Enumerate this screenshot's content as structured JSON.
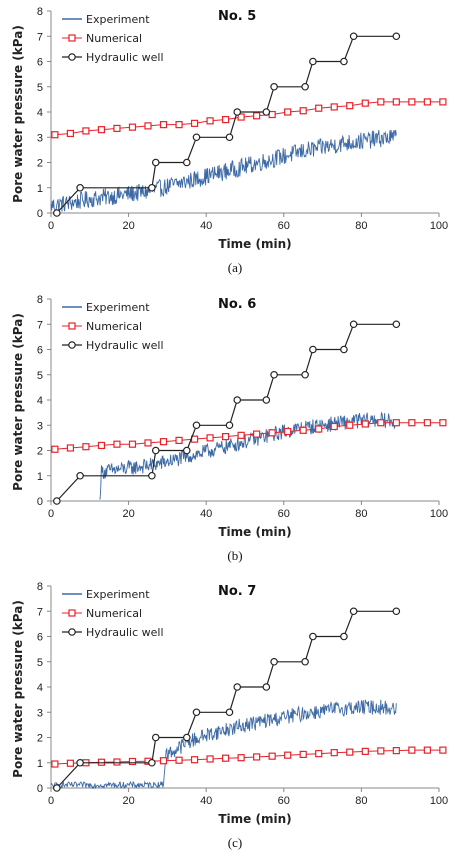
{
  "colors": {
    "experiment": "#3d6aa6",
    "numerical": "#e8222a",
    "hydraulic": "#222222",
    "axis": "#888888"
  },
  "legend": {
    "experiment": "Experiment",
    "numerical": "Numerical",
    "hydraulic": "Hydraulic well"
  },
  "chart_data": [
    {
      "type": "line",
      "panel": "(a)",
      "annotation": "No. 5",
      "xlabel": "Time (min)",
      "ylabel": "Pore water pressure (kPa)",
      "xlim": [
        0,
        100
      ],
      "ylim": [
        0,
        8
      ],
      "xticks": [
        0,
        20,
        40,
        60,
        80,
        100
      ],
      "yticks": [
        0,
        1,
        2,
        3,
        4,
        5,
        6,
        7,
        8
      ],
      "xtick_labels": [
        "0",
        "20",
        "40",
        "60",
        "80",
        "100"
      ],
      "ytick_labels": [
        "0",
        "1",
        "2",
        "3",
        "4",
        "5",
        "6",
        "7",
        "8"
      ],
      "grid": false,
      "legend_position": "top-left",
      "series": [
        {
          "name": "Experiment",
          "style": "noisy-line",
          "x": [
            0,
            5,
            10,
            15,
            20,
            25,
            30,
            35,
            40,
            45,
            50,
            55,
            60,
            65,
            70,
            75,
            80,
            85,
            89
          ],
          "y": [
            0.3,
            0.4,
            0.55,
            0.65,
            0.75,
            0.85,
            1.05,
            1.25,
            1.45,
            1.65,
            1.85,
            2.05,
            2.25,
            2.45,
            2.6,
            2.75,
            2.85,
            2.95,
            3.0
          ],
          "noise": 0.35
        },
        {
          "name": "Numerical",
          "style": "square-markers",
          "x": [
            1,
            5,
            9,
            13,
            17,
            21,
            25,
            29,
            33,
            37,
            41,
            45,
            49,
            53,
            57,
            61,
            65,
            69,
            73,
            77,
            81,
            85,
            89,
            93,
            97,
            101
          ],
          "y": [
            3.1,
            3.15,
            3.25,
            3.3,
            3.35,
            3.4,
            3.45,
            3.5,
            3.5,
            3.55,
            3.65,
            3.7,
            3.8,
            3.85,
            3.9,
            4.0,
            4.05,
            4.15,
            4.2,
            4.25,
            4.35,
            4.4,
            4.4,
            4.4,
            4.4,
            4.4
          ]
        },
        {
          "name": "Hydraulic well",
          "style": "step-circles",
          "x": [
            1.5,
            7.5,
            26,
            27,
            35,
            37.5,
            46,
            48,
            55.5,
            57.5,
            65.5,
            67.5,
            75.5,
            78,
            89
          ],
          "y": [
            0,
            1,
            1,
            2,
            2,
            3,
            3,
            4,
            4,
            5,
            5,
            6,
            6,
            7,
            7
          ]
        }
      ]
    },
    {
      "type": "line",
      "panel": "(b)",
      "annotation": "No. 6",
      "xlabel": "Time (min)",
      "ylabel": "Pore water pressure (kPa)",
      "xlim": [
        0,
        100
      ],
      "ylim": [
        0,
        8
      ],
      "xticks": [
        0,
        20,
        40,
        60,
        80,
        100
      ],
      "yticks": [
        0,
        1,
        2,
        3,
        4,
        5,
        6,
        7,
        8
      ],
      "xtick_labels": [
        "0",
        "20",
        "40",
        "60",
        "80",
        "100"
      ],
      "ytick_labels": [
        "0",
        "1",
        "2",
        "3",
        "4",
        "5",
        "6",
        "7",
        "8"
      ],
      "grid": false,
      "legend_position": "top-left",
      "series": [
        {
          "name": "Experiment",
          "style": "noisy-line",
          "x": [
            12.5,
            13,
            15,
            20,
            25,
            30,
            35,
            40,
            45,
            50,
            55,
            60,
            65,
            70,
            75,
            80,
            85,
            89
          ],
          "y": [
            0,
            1.15,
            1.2,
            1.3,
            1.4,
            1.55,
            1.75,
            1.95,
            2.15,
            2.35,
            2.55,
            2.75,
            2.9,
            3.0,
            3.1,
            3.2,
            3.2,
            3.15
          ],
          "noise": 0.3
        },
        {
          "name": "Numerical",
          "style": "square-markers",
          "x": [
            1,
            5,
            9,
            13,
            17,
            21,
            25,
            29,
            33,
            37,
            41,
            45,
            49,
            53,
            57,
            61,
            65,
            69,
            73,
            77,
            81,
            85,
            89,
            93,
            97,
            101
          ],
          "y": [
            2.05,
            2.1,
            2.15,
            2.2,
            2.25,
            2.25,
            2.3,
            2.35,
            2.4,
            2.45,
            2.5,
            2.55,
            2.6,
            2.65,
            2.7,
            2.75,
            2.8,
            2.85,
            2.95,
            3.0,
            3.05,
            3.1,
            3.1,
            3.1,
            3.1,
            3.1
          ]
        },
        {
          "name": "Hydraulic well",
          "style": "step-circles",
          "x": [
            1.5,
            7.5,
            26,
            27,
            35,
            37.5,
            46,
            48,
            55.5,
            57.5,
            65.5,
            67.5,
            75.5,
            78,
            89
          ],
          "y": [
            0,
            1,
            1,
            2,
            2,
            3,
            3,
            4,
            4,
            5,
            5,
            6,
            6,
            7,
            7
          ]
        }
      ]
    },
    {
      "type": "line",
      "panel": "(c)",
      "annotation": "No. 7",
      "xlabel": "Time (min)",
      "ylabel": "Pore water pressure (kPa)",
      "xlim": [
        0,
        100
      ],
      "ylim": [
        0,
        8
      ],
      "xticks": [
        0,
        20,
        40,
        60,
        80,
        100
      ],
      "yticks": [
        0,
        1,
        2,
        3,
        4,
        5,
        6,
        7,
        8
      ],
      "xtick_labels": [
        "0",
        "20",
        "40",
        "60",
        "80",
        "100"
      ],
      "ytick_labels": [
        "0",
        "1",
        "2",
        "3",
        "4",
        "5",
        "6",
        "7",
        "8"
      ],
      "grid": false,
      "legend_position": "top-left",
      "series": [
        {
          "name": "Experiment",
          "style": "noisy-line",
          "x": [
            0,
            5,
            10,
            15,
            20,
            25,
            29,
            29.5,
            32,
            35,
            40,
            45,
            50,
            55,
            60,
            65,
            70,
            75,
            80,
            85,
            89
          ],
          "y": [
            0.1,
            0.12,
            0.12,
            0.12,
            0.12,
            0.12,
            0.15,
            1.3,
            1.5,
            1.8,
            2.1,
            2.3,
            2.5,
            2.65,
            2.8,
            2.95,
            3.05,
            3.15,
            3.2,
            3.2,
            3.1
          ],
          "noise": 0.3
        },
        {
          "name": "Numerical",
          "style": "square-markers",
          "x": [
            1,
            5,
            9,
            13,
            17,
            21,
            25,
            29,
            33,
            37,
            41,
            45,
            49,
            53,
            57,
            61,
            65,
            69,
            73,
            77,
            81,
            85,
            89,
            93,
            97,
            101
          ],
          "y": [
            0.95,
            0.98,
            1.0,
            1.02,
            1.03,
            1.05,
            1.06,
            1.08,
            1.1,
            1.12,
            1.15,
            1.18,
            1.2,
            1.23,
            1.26,
            1.3,
            1.33,
            1.36,
            1.4,
            1.42,
            1.45,
            1.47,
            1.48,
            1.5,
            1.5,
            1.5
          ]
        },
        {
          "name": "Hydraulic well",
          "style": "step-circles",
          "x": [
            1.5,
            7.5,
            26,
            27,
            35,
            37.5,
            46,
            48,
            55.5,
            57.5,
            65.5,
            67.5,
            75.5,
            78,
            89
          ],
          "y": [
            0,
            1,
            1,
            2,
            2,
            3,
            3,
            4,
            4,
            5,
            5,
            6,
            6,
            7,
            7
          ]
        }
      ]
    }
  ]
}
